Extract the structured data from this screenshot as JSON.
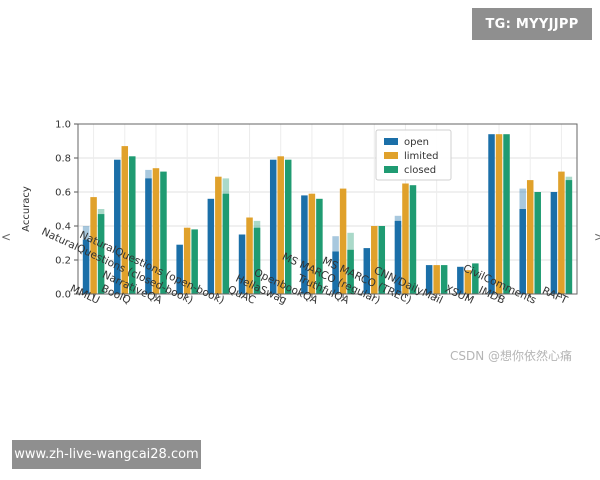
{
  "watermarks": {
    "telegram": "TG: MYYJJPP",
    "site": "www.zh-live-wangcai28.com",
    "csdn": "CSDN @想你依然心痛"
  },
  "side_marks": {
    "left": "<",
    "right": ">"
  },
  "chart_data": {
    "type": "bar",
    "ylabel": "Accuracy",
    "ylim": [
      0,
      1.0
    ],
    "yticks": [
      0.0,
      0.2,
      0.4,
      0.6,
      0.8,
      1.0
    ],
    "ytick_labels": [
      "0.0",
      "0.2",
      "0.4",
      "0.6",
      "0.8",
      "1.0"
    ],
    "grid": true,
    "legend": "top-center",
    "categories": [
      "MMLU",
      "BoolQ",
      "NarrativeQA",
      "NaturalQuestions (closed-book)",
      "NaturalQuestions (open-book)",
      "QuAC",
      "HellaSwag",
      "OpenbookQA",
      "TruthfulQA",
      "MS MARCO (regular)",
      "MS MARCO (TREC)",
      "CNN/DailyMail",
      "XSUM",
      "IMDB",
      "CivilComments",
      "RAFT"
    ],
    "series": [
      {
        "name": "open",
        "color": "#1b6fa8",
        "values": [
          0.32,
          0.79,
          0.68,
          0.29,
          0.56,
          0.35,
          0.79,
          0.58,
          0.25,
          0.27,
          0.43,
          0.17,
          0.16,
          0.94,
          0.5,
          0.6
        ],
        "faded_values": [
          0.4,
          0.79,
          0.73,
          0.29,
          0.56,
          0.35,
          0.79,
          0.58,
          0.34,
          0.27,
          0.46,
          0.17,
          0.16,
          0.94,
          0.62,
          0.6
        ]
      },
      {
        "name": "limited",
        "color": "#e0a12b",
        "values": [
          0.57,
          0.87,
          0.74,
          0.39,
          0.69,
          0.45,
          0.81,
          0.59,
          0.62,
          0.4,
          0.65,
          0.17,
          0.14,
          0.94,
          0.67,
          0.72
        ],
        "faded_values": [
          0.57,
          0.87,
          0.74,
          0.39,
          0.69,
          0.45,
          0.81,
          0.59,
          0.62,
          0.4,
          0.65,
          0.17,
          0.14,
          0.94,
          0.67,
          0.72
        ]
      },
      {
        "name": "closed",
        "color": "#1f9b72",
        "values": [
          0.47,
          0.81,
          0.72,
          0.38,
          0.59,
          0.39,
          0.79,
          0.56,
          0.26,
          0.4,
          0.64,
          0.17,
          0.18,
          0.94,
          0.6,
          0.67
        ],
        "faded_values": [
          0.5,
          0.81,
          0.72,
          0.38,
          0.68,
          0.43,
          0.79,
          0.56,
          0.36,
          0.4,
          0.64,
          0.17,
          0.18,
          0.94,
          0.6,
          0.69
        ]
      }
    ]
  }
}
